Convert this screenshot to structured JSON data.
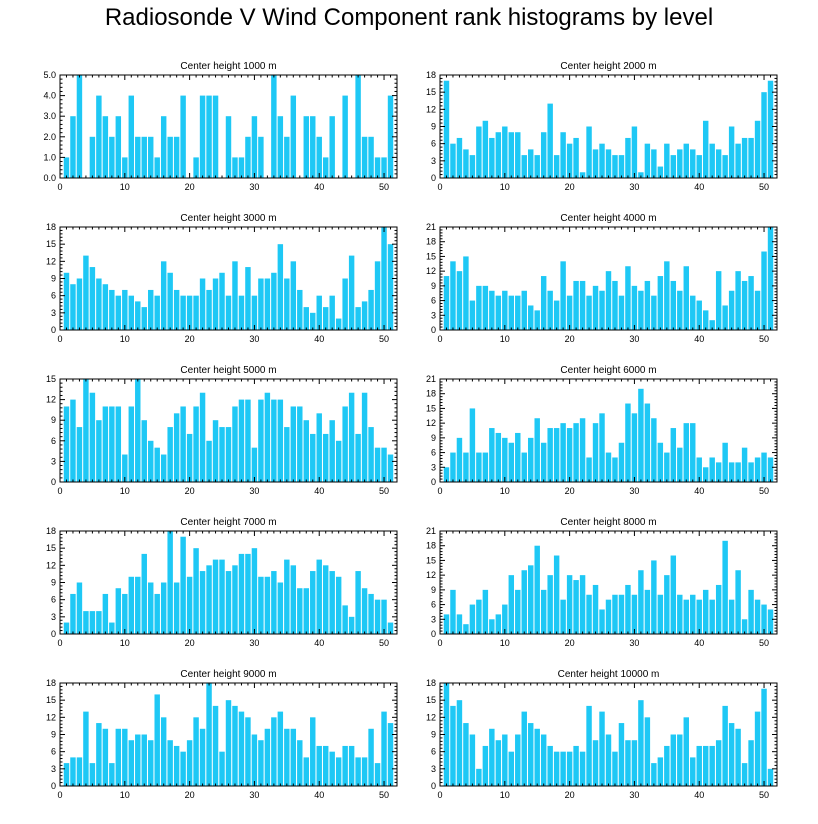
{
  "title": "Radiosonde V Wind Component rank histograms by level",
  "colors": {
    "bar": "#1ec8f5",
    "frame": "#000000",
    "background": "#ffffff"
  },
  "chart_data": [
    {
      "type": "bar",
      "title": "Center height 1000 m",
      "x_start": 1,
      "xlim": [
        0,
        52
      ],
      "ylim": [
        0,
        5
      ],
      "xticks": [
        0,
        10,
        20,
        30,
        40,
        50
      ],
      "yticks": [
        "0.0",
        "1.0",
        "2.0",
        "3.0",
        "4.0",
        "5.0"
      ],
      "values": [
        1,
        3,
        5,
        0,
        2,
        4,
        3,
        2,
        3,
        1,
        4,
        2,
        2,
        2,
        1,
        3,
        2,
        2,
        4,
        0,
        1,
        4,
        4,
        4,
        0,
        3,
        1,
        1,
        2,
        3,
        2,
        0,
        5,
        3,
        2,
        4,
        0,
        3,
        3,
        2,
        1,
        3,
        0,
        4,
        0,
        5,
        2,
        2,
        1,
        1,
        4
      ]
    },
    {
      "type": "bar",
      "title": "Center height 2000 m",
      "x_start": 1,
      "xlim": [
        0,
        52
      ],
      "ylim": [
        0,
        18
      ],
      "xticks": [
        0,
        10,
        20,
        30,
        40,
        50
      ],
      "yticks": [
        "0",
        "3",
        "6",
        "9",
        "12",
        "15",
        "18"
      ],
      "values": [
        17,
        6,
        7,
        5,
        4,
        9,
        10,
        7,
        8,
        9,
        8,
        8,
        4,
        5,
        4,
        8,
        13,
        4,
        8,
        6,
        7,
        1,
        9,
        5,
        6,
        5,
        4,
        4,
        7,
        9,
        1,
        6,
        5,
        2,
        6,
        4,
        5,
        6,
        5,
        4,
        10,
        6,
        5,
        4,
        9,
        6,
        7,
        7,
        10,
        15,
        17
      ]
    },
    {
      "type": "bar",
      "title": "Center height 3000 m",
      "x_start": 1,
      "xlim": [
        0,
        52
      ],
      "ylim": [
        0,
        18
      ],
      "xticks": [
        0,
        10,
        20,
        30,
        40,
        50
      ],
      "yticks": [
        "0",
        "3",
        "6",
        "9",
        "12",
        "15",
        "18"
      ],
      "values": [
        10,
        8,
        9,
        13,
        11,
        9,
        8,
        7,
        6,
        7,
        6,
        5,
        4,
        7,
        6,
        12,
        10,
        7,
        6,
        6,
        6,
        9,
        7,
        9,
        10,
        6,
        12,
        6,
        11,
        6,
        9,
        9,
        10,
        15,
        9,
        12,
        7,
        4,
        3,
        6,
        4,
        6,
        2,
        9,
        13,
        4,
        5,
        7,
        12,
        18,
        15
      ]
    },
    {
      "type": "bar",
      "title": "Center height 4000 m",
      "x_start": 1,
      "xlim": [
        0,
        52
      ],
      "ylim": [
        0,
        21
      ],
      "xticks": [
        0,
        10,
        20,
        30,
        40,
        50
      ],
      "yticks": [
        "0",
        "3",
        "6",
        "9",
        "12",
        "15",
        "18",
        "21"
      ],
      "values": [
        11,
        14,
        12,
        15,
        6,
        9,
        9,
        8,
        7,
        8,
        7,
        7,
        8,
        5,
        4,
        11,
        8,
        6,
        14,
        7,
        10,
        10,
        7,
        9,
        8,
        12,
        10,
        7,
        13,
        9,
        8,
        10,
        7,
        11,
        14,
        10,
        8,
        13,
        7,
        6,
        4,
        2,
        12,
        5,
        8,
        12,
        10,
        11,
        8,
        16,
        21
      ]
    },
    {
      "type": "bar",
      "title": "Center height 5000 m",
      "x_start": 1,
      "xlim": [
        0,
        52
      ],
      "ylim": [
        0,
        15
      ],
      "xticks": [
        0,
        10,
        20,
        30,
        40,
        50
      ],
      "yticks": [
        "0",
        "3",
        "6",
        "9",
        "12",
        "15"
      ],
      "values": [
        11,
        12,
        8,
        15,
        13,
        9,
        11,
        11,
        11,
        4,
        11,
        15,
        9,
        6,
        5,
        4,
        8,
        10,
        11,
        7,
        11,
        13,
        6,
        9,
        8,
        8,
        11,
        12,
        12,
        5,
        12,
        13,
        12,
        12,
        8,
        11,
        11,
        9,
        7,
        10,
        7,
        9,
        6,
        11,
        13,
        7,
        13,
        8,
        5,
        5,
        4
      ]
    },
    {
      "type": "bar",
      "title": "Center height 6000 m",
      "x_start": 1,
      "xlim": [
        0,
        52
      ],
      "ylim": [
        0,
        21
      ],
      "xticks": [
        0,
        10,
        20,
        30,
        40,
        50
      ],
      "yticks": [
        "0",
        "3",
        "6",
        "9",
        "12",
        "15",
        "18",
        "21"
      ],
      "values": [
        3,
        6,
        9,
        6,
        15,
        6,
        6,
        11,
        10,
        9,
        8,
        10,
        6,
        9,
        13,
        8,
        11,
        11,
        12,
        11,
        12,
        13,
        5,
        12,
        14,
        6,
        5,
        8,
        16,
        14,
        19,
        16,
        13,
        8,
        6,
        11,
        7,
        12,
        12,
        5,
        3,
        5,
        4,
        8,
        4,
        4,
        7,
        4,
        5,
        6,
        5
      ]
    },
    {
      "type": "bar",
      "title": "Center height 7000 m",
      "x_start": 1,
      "xlim": [
        0,
        52
      ],
      "ylim": [
        0,
        18
      ],
      "xticks": [
        0,
        10,
        20,
        30,
        40,
        50
      ],
      "yticks": [
        "0",
        "3",
        "6",
        "9",
        "12",
        "15",
        "18"
      ],
      "values": [
        2,
        7,
        9,
        4,
        4,
        4,
        7,
        2,
        8,
        7,
        10,
        10,
        14,
        9,
        7,
        9,
        18,
        9,
        17,
        10,
        15,
        11,
        12,
        13,
        13,
        11,
        12,
        14,
        14,
        15,
        10,
        10,
        11,
        9,
        13,
        12,
        8,
        8,
        11,
        13,
        12,
        11,
        10,
        5,
        3,
        11,
        8,
        7,
        6,
        6,
        2
      ]
    },
    {
      "type": "bar",
      "title": "Center height 8000 m",
      "x_start": 1,
      "xlim": [
        0,
        52
      ],
      "ylim": [
        0,
        21
      ],
      "xticks": [
        0,
        10,
        20,
        30,
        40,
        50
      ],
      "yticks": [
        "0",
        "3",
        "6",
        "9",
        "12",
        "15",
        "18",
        "21"
      ],
      "values": [
        4,
        9,
        4,
        2,
        6,
        7,
        9,
        3,
        4,
        6,
        12,
        9,
        13,
        14,
        18,
        9,
        12,
        16,
        7,
        12,
        11,
        12,
        8,
        10,
        5,
        7,
        8,
        8,
        10,
        8,
        13,
        9,
        15,
        8,
        12,
        16,
        8,
        7,
        8,
        7,
        9,
        7,
        10,
        19,
        7,
        13,
        3,
        9,
        7,
        6,
        5
      ]
    },
    {
      "type": "bar",
      "title": "Center height 9000 m",
      "x_start": 1,
      "xlim": [
        0,
        52
      ],
      "ylim": [
        0,
        18
      ],
      "xticks": [
        0,
        10,
        20,
        30,
        40,
        50
      ],
      "yticks": [
        "0",
        "3",
        "6",
        "9",
        "12",
        "15",
        "18"
      ],
      "values": [
        4,
        5,
        5,
        13,
        4,
        11,
        10,
        4,
        10,
        10,
        8,
        9,
        9,
        8,
        16,
        12,
        8,
        7,
        6,
        8,
        12,
        10,
        18,
        14,
        6,
        15,
        14,
        13,
        12,
        9,
        8,
        10,
        12,
        13,
        10,
        10,
        8,
        5,
        12,
        7,
        7,
        6,
        5,
        7,
        7,
        5,
        5,
        10,
        4,
        13,
        11
      ]
    },
    {
      "type": "bar",
      "title": "Center height 10000 m",
      "x_start": 1,
      "xlim": [
        0,
        52
      ],
      "ylim": [
        0,
        18
      ],
      "xticks": [
        0,
        10,
        20,
        30,
        40,
        50
      ],
      "yticks": [
        "0",
        "3",
        "6",
        "9",
        "12",
        "15",
        "18"
      ],
      "values": [
        18,
        14,
        15,
        11,
        9,
        3,
        7,
        10,
        8,
        9,
        6,
        9,
        13,
        11,
        10,
        9,
        7,
        6,
        6,
        6,
        7,
        6,
        14,
        8,
        13,
        9,
        6,
        11,
        8,
        8,
        15,
        12,
        4,
        5,
        7,
        9,
        9,
        12,
        5,
        7,
        7,
        7,
        8,
        14,
        11,
        10,
        4,
        8,
        13,
        17,
        3
      ]
    }
  ]
}
